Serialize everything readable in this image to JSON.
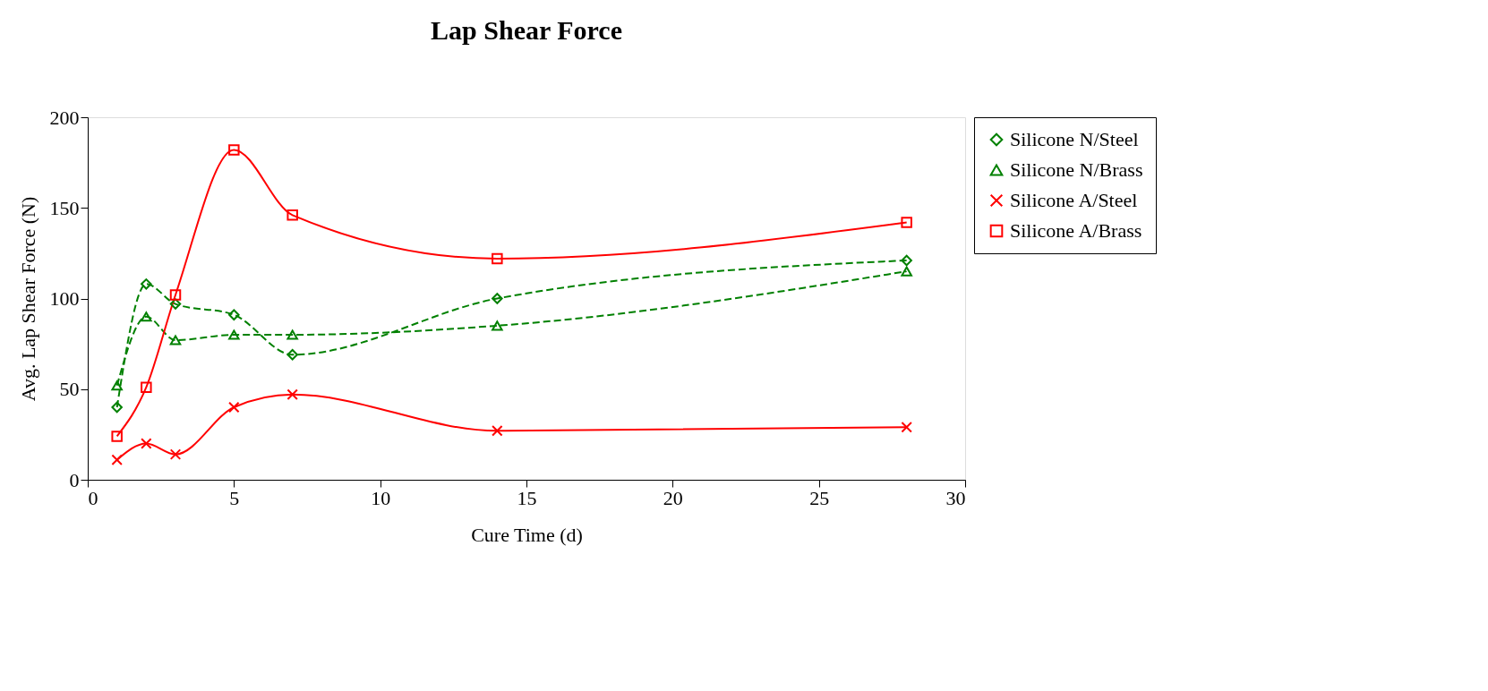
{
  "chart_data": {
    "type": "line",
    "title": "Lap Shear Force",
    "xlabel": "Cure Time (d)",
    "ylabel": "Avg. Lap Shear Force (N)",
    "x": [
      1,
      2,
      3,
      5,
      7,
      14,
      28
    ],
    "series": [
      {
        "name": "Silicone N/Steel",
        "color": "#008000",
        "marker": "diamond",
        "line_style": "dashed",
        "values": [
          40,
          108,
          97,
          91,
          69,
          100,
          121
        ]
      },
      {
        "name": "Silicone N/Brass",
        "color": "#008000",
        "marker": "triangle",
        "line_style": "dashed",
        "values": [
          52,
          90,
          77,
          80,
          80,
          85,
          115
        ]
      },
      {
        "name": "Silicone A/Steel",
        "color": "#ff0000",
        "marker": "cross",
        "line_style": "solid",
        "values": [
          11,
          20,
          14,
          40,
          47,
          27,
          29
        ]
      },
      {
        "name": "Silicone A/Brass",
        "color": "#ff0000",
        "marker": "square",
        "line_style": "solid",
        "values": [
          24,
          51,
          102,
          182,
          146,
          122,
          142
        ]
      }
    ],
    "xlim": [
      0,
      30
    ],
    "xticks": [
      0,
      5,
      10,
      15,
      20,
      25,
      30
    ],
    "ylim": [
      0,
      200
    ],
    "yticks": [
      0,
      50,
      100,
      150,
      200
    ],
    "grid": false,
    "legend": "right"
  }
}
